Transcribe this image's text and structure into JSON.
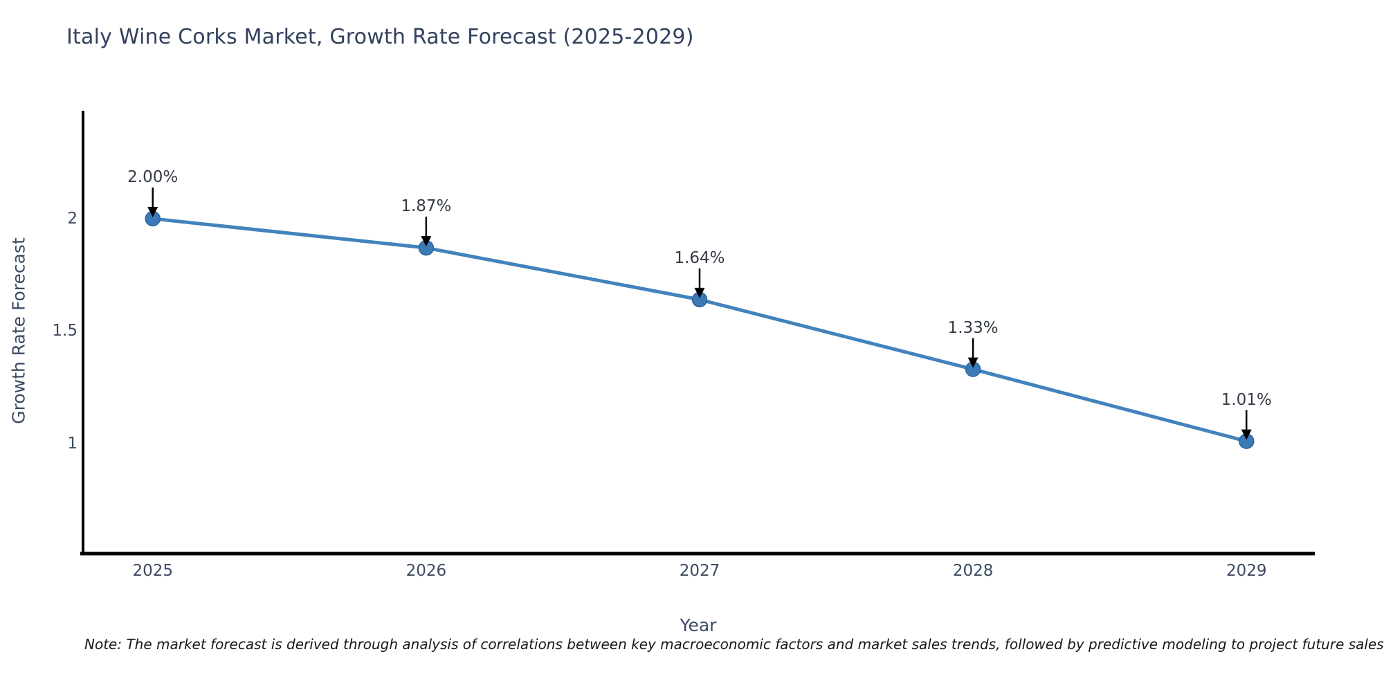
{
  "title": "Italy Wine Corks Market, Growth Rate Forecast (2025-2029)",
  "note": "Note: The market forecast is derived through analysis of correlations between key macroeconomic factors and market sales trends, followed by predictive modeling to project future sales",
  "chart_data": {
    "type": "line",
    "title": "Italy Wine Corks Market, Growth Rate Forecast (2025-2029)",
    "xlabel": "Year",
    "ylabel": "Growth Rate Forecast",
    "categories": [
      "2025",
      "2026",
      "2027",
      "2028",
      "2029"
    ],
    "x": [
      2025,
      2026,
      2027,
      2028,
      2029
    ],
    "values": [
      2.0,
      1.87,
      1.64,
      1.33,
      1.01
    ],
    "point_labels": [
      "2.00%",
      "1.87%",
      "1.64%",
      "1.33%",
      "1.01%"
    ],
    "ytick_values": [
      2,
      1.5,
      1
    ],
    "ytick_labels": [
      "2",
      "1.5",
      "1"
    ],
    "ylim": [
      0.51,
      2.48
    ],
    "xlim": [
      2024.74,
      2029.25
    ],
    "grid": false,
    "legend_position": "none",
    "line_color": "#4283bd",
    "marker_color": "#3b7ab6",
    "marker_edge_color": "#2d649b",
    "arrow_color": "#000000",
    "axis_color": "#000000"
  }
}
